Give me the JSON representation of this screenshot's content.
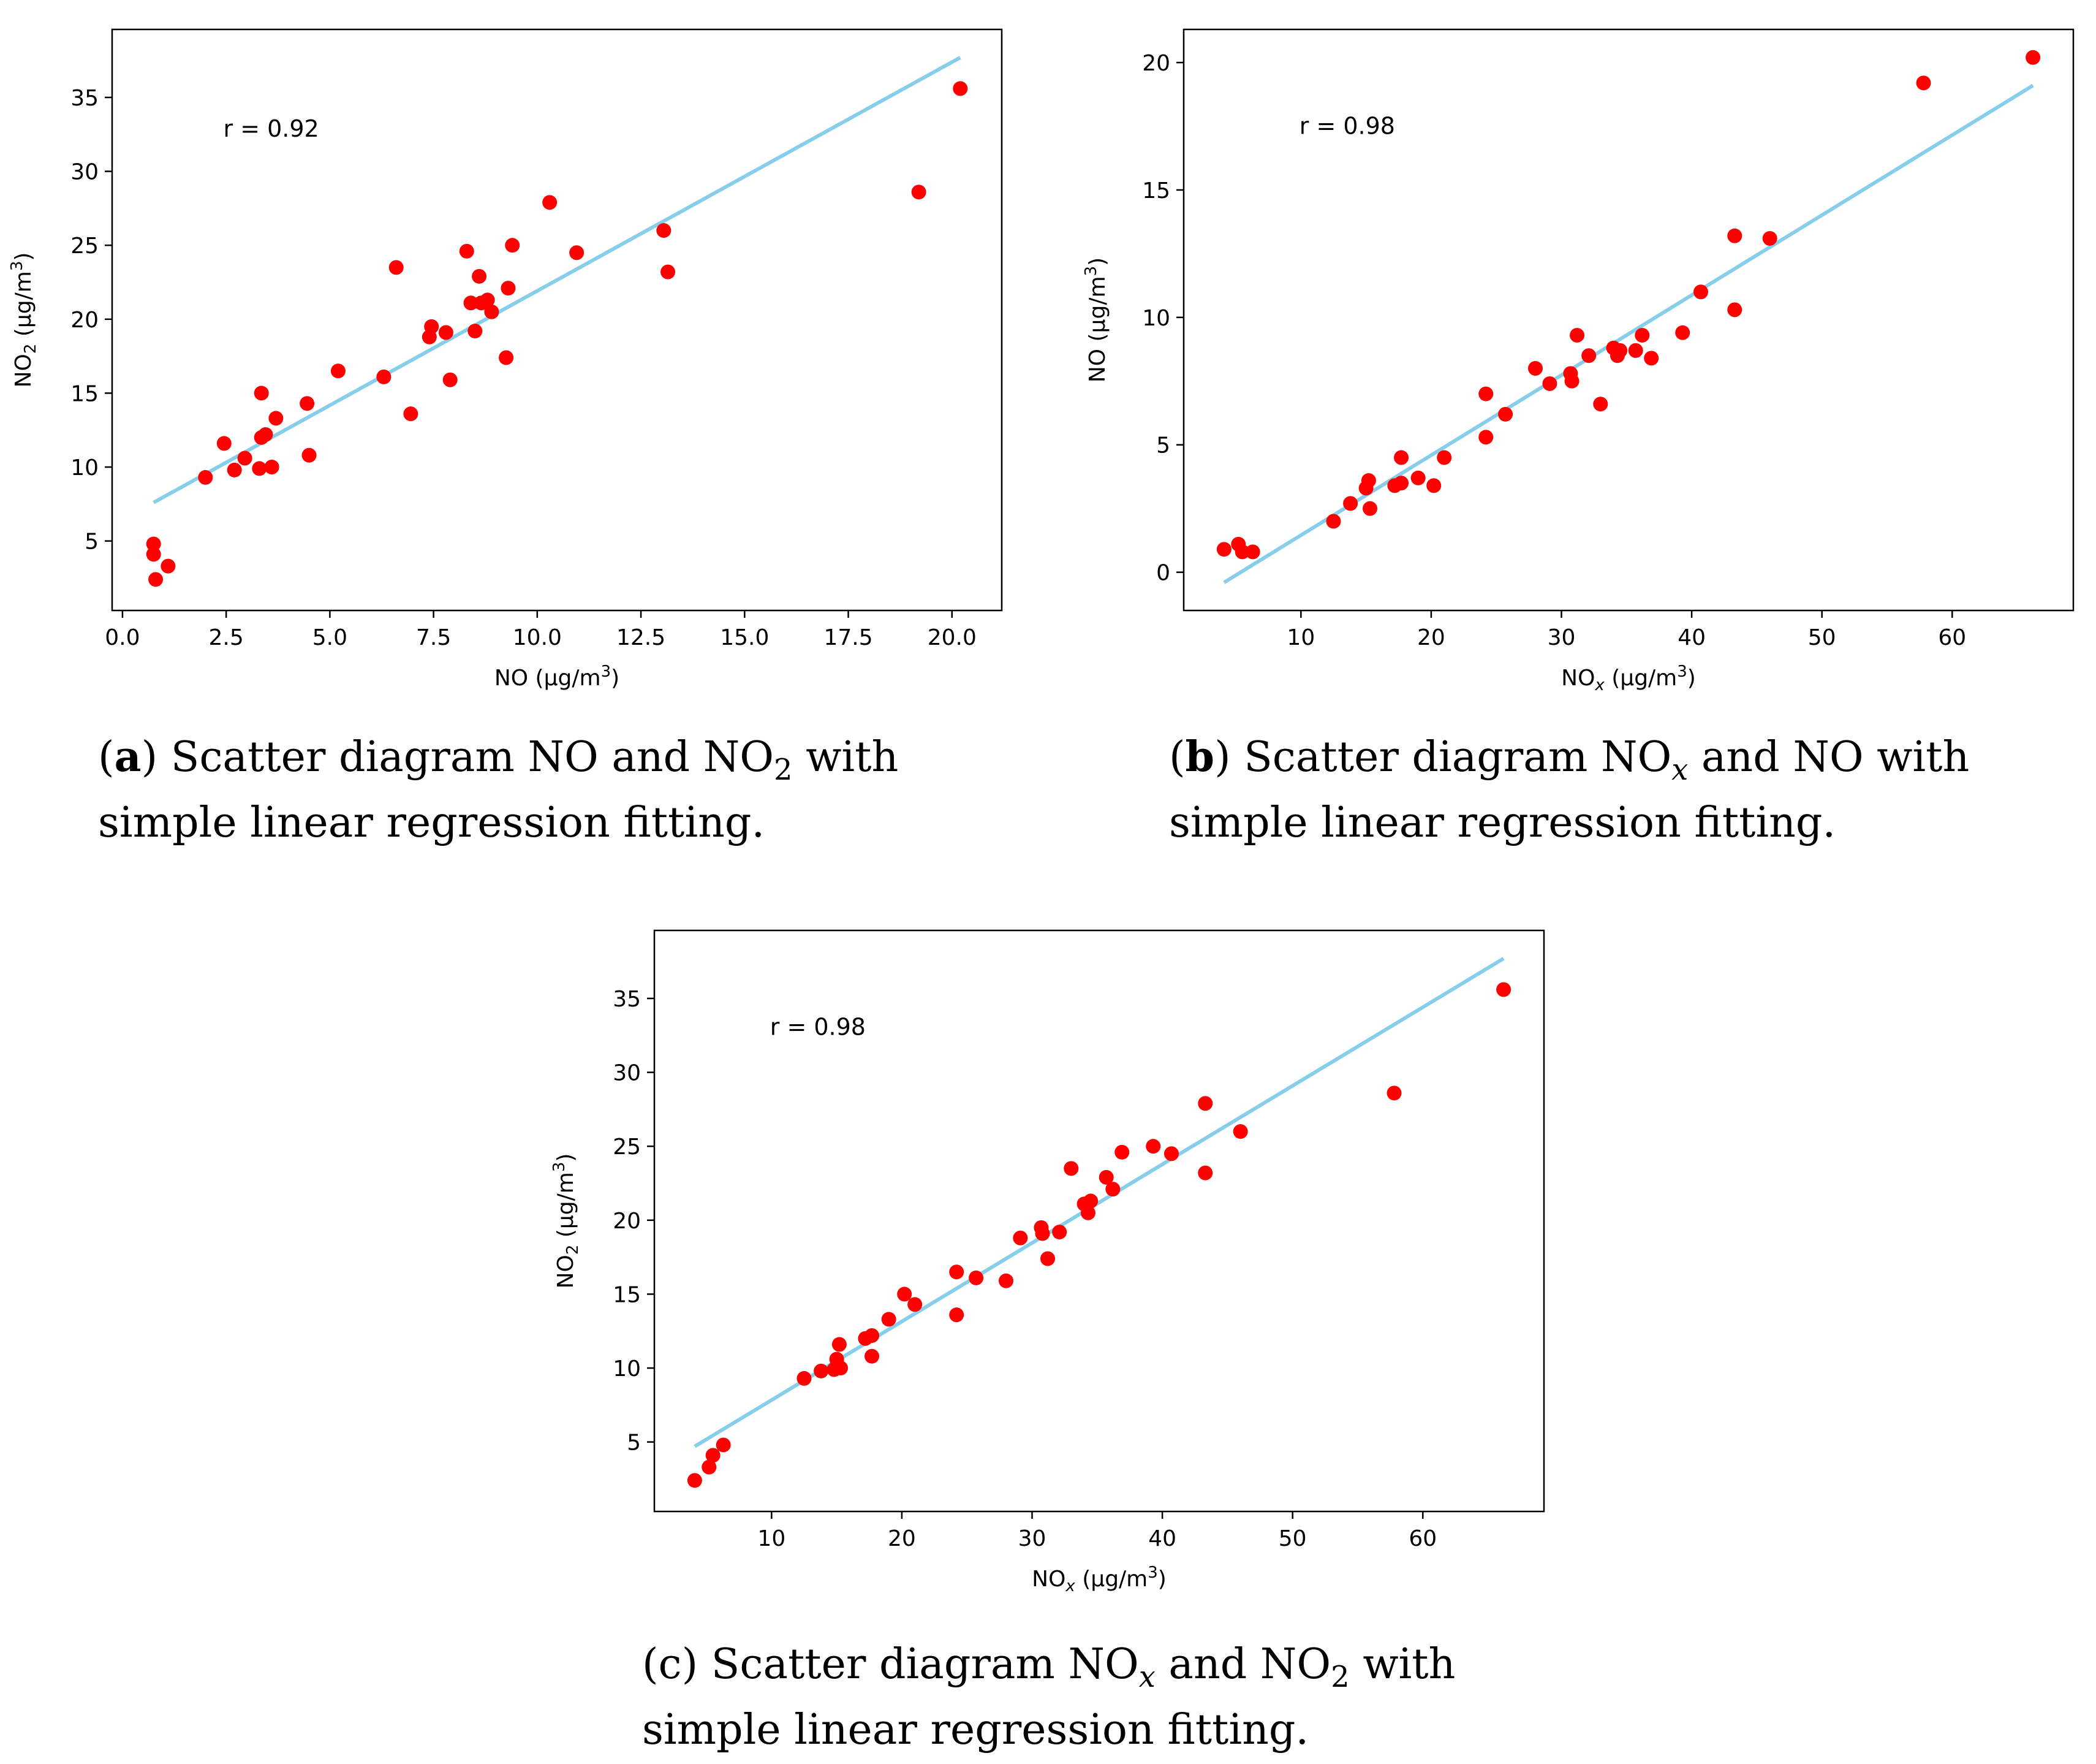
{
  "colors": {
    "points": "#ff0000",
    "line": "#87ceeb",
    "frame": "#000000"
  },
  "chart_data": [
    {
      "id": "a",
      "type": "scatter",
      "annotation": "r = 0.92",
      "xlabel_main": "NO (µg/m",
      "xlabel_sup": "3",
      "xlabel_tail": ")",
      "ylabel_main": "NO",
      "ylabel_sub": "2",
      "ylabel_mid": " (µg/m",
      "ylabel_sup": "3",
      "ylabel_tail": ")",
      "xlim": [
        -0.25,
        21.2
      ],
      "ylim": [
        0.3,
        39.6
      ],
      "xticks": [
        0,
        2.5,
        5,
        7.5,
        10,
        12.5,
        15,
        17.5,
        20
      ],
      "xtick_labels": [
        "0.0",
        "2.5",
        "5.0",
        "7.5",
        "10.0",
        "12.5",
        "15.0",
        "17.5",
        "20.0"
      ],
      "yticks": [
        5,
        10,
        15,
        20,
        25,
        30,
        35
      ],
      "ytick_labels": [
        "5",
        "10",
        "15",
        "20",
        "25",
        "30",
        "35"
      ],
      "fit": {
        "x": [
          0.75,
          20.2
        ],
        "y": [
          7.6,
          37.7
        ]
      },
      "points": [
        [
          0.75,
          4.8
        ],
        [
          0.75,
          4.1
        ],
        [
          0.8,
          2.4
        ],
        [
          1.1,
          3.3
        ],
        [
          2.0,
          9.3
        ],
        [
          2.45,
          11.6
        ],
        [
          2.7,
          9.8
        ],
        [
          2.95,
          10.6
        ],
        [
          3.3,
          9.9
        ],
        [
          3.35,
          15.0
        ],
        [
          3.35,
          12.0
        ],
        [
          3.45,
          12.2
        ],
        [
          3.6,
          10.0
        ],
        [
          3.7,
          13.3
        ],
        [
          4.45,
          14.3
        ],
        [
          4.5,
          10.8
        ],
        [
          5.2,
          16.5
        ],
        [
          6.3,
          16.1
        ],
        [
          6.6,
          23.5
        ],
        [
          6.95,
          13.6
        ],
        [
          7.4,
          18.8
        ],
        [
          7.45,
          19.5
        ],
        [
          7.8,
          19.1
        ],
        [
          7.9,
          15.9
        ],
        [
          8.3,
          24.6
        ],
        [
          8.4,
          21.1
        ],
        [
          8.5,
          19.2
        ],
        [
          8.6,
          22.9
        ],
        [
          8.65,
          21.1
        ],
        [
          8.8,
          21.3
        ],
        [
          8.9,
          20.5
        ],
        [
          9.25,
          17.4
        ],
        [
          9.3,
          22.1
        ],
        [
          9.4,
          25.0
        ],
        [
          10.3,
          27.9
        ],
        [
          10.95,
          24.5
        ],
        [
          13.05,
          26.0
        ],
        [
          13.15,
          23.2
        ],
        [
          19.2,
          28.6
        ],
        [
          20.2,
          35.6
        ]
      ]
    },
    {
      "id": "b",
      "type": "scatter",
      "annotation": "r = 0.98",
      "xlabel_main": "NO",
      "xlabel_sub": "x",
      "xlabel_mid": " (µg/m",
      "xlabel_sup": "3",
      "xlabel_tail": ")",
      "ylabel_main": "NO (µg/m",
      "ylabel_sup": "3",
      "ylabel_tail": ")",
      "xlim": [
        1.0,
        69.3
      ],
      "ylim": [
        -1.5,
        21.3
      ],
      "xticks": [
        10,
        20,
        30,
        40,
        50,
        60
      ],
      "xtick_labels": [
        "10",
        "20",
        "30",
        "40",
        "50",
        "60"
      ],
      "yticks": [
        0,
        5,
        10,
        15,
        20
      ],
      "ytick_labels": [
        "0",
        "5",
        "10",
        "15",
        "20"
      ],
      "fit": {
        "x": [
          4.1,
          66.2
        ],
        "y": [
          -0.4,
          19.1
        ]
      },
      "points": [
        [
          4.1,
          0.9
        ],
        [
          5.2,
          1.1
        ],
        [
          5.5,
          0.8
        ],
        [
          6.3,
          0.8
        ],
        [
          12.5,
          2.0
        ],
        [
          13.8,
          2.7
        ],
        [
          15.0,
          3.3
        ],
        [
          15.2,
          3.6
        ],
        [
          15.3,
          2.5
        ],
        [
          17.2,
          3.4
        ],
        [
          17.7,
          3.5
        ],
        [
          17.7,
          4.5
        ],
        [
          19.0,
          3.7
        ],
        [
          20.2,
          3.4
        ],
        [
          21.0,
          4.5
        ],
        [
          24.2,
          7.0
        ],
        [
          24.2,
          5.3
        ],
        [
          25.7,
          6.2
        ],
        [
          28.0,
          8.0
        ],
        [
          29.1,
          7.4
        ],
        [
          30.7,
          7.8
        ],
        [
          30.8,
          7.5
        ],
        [
          31.2,
          9.3
        ],
        [
          32.1,
          8.5
        ],
        [
          33.0,
          6.6
        ],
        [
          34.0,
          8.8
        ],
        [
          34.3,
          8.5
        ],
        [
          34.5,
          8.7
        ],
        [
          35.7,
          8.7
        ],
        [
          36.2,
          9.3
        ],
        [
          36.9,
          8.4
        ],
        [
          39.3,
          9.4
        ],
        [
          40.7,
          11.0
        ],
        [
          43.3,
          13.2
        ],
        [
          43.3,
          10.3
        ],
        [
          46.0,
          13.1
        ],
        [
          57.8,
          19.2
        ],
        [
          66.2,
          20.2
        ]
      ]
    },
    {
      "id": "c",
      "type": "scatter",
      "annotation": "r = 0.98",
      "xlabel_main": "NO",
      "xlabel_sub": "x",
      "xlabel_mid": " (µg/m",
      "xlabel_sup": "3",
      "xlabel_tail": ")",
      "ylabel_main": "NO",
      "ylabel_sub": "2",
      "ylabel_mid": " (µg/m",
      "ylabel_sup": "3",
      "ylabel_tail": ")",
      "xlim": [
        1.0,
        69.3
      ],
      "ylim": [
        0.3,
        39.6
      ],
      "xticks": [
        10,
        20,
        30,
        40,
        50,
        60
      ],
      "xtick_labels": [
        "10",
        "20",
        "30",
        "40",
        "50",
        "60"
      ],
      "yticks": [
        5,
        10,
        15,
        20,
        25,
        30,
        35
      ],
      "ytick_labels": [
        "5",
        "10",
        "15",
        "20",
        "25",
        "30",
        "35"
      ],
      "fit": {
        "x": [
          4.1,
          66.2
        ],
        "y": [
          4.7,
          37.7
        ]
      },
      "points": [
        [
          4.1,
          2.4
        ],
        [
          5.2,
          3.3
        ],
        [
          5.5,
          4.1
        ],
        [
          6.3,
          4.8
        ],
        [
          12.5,
          9.3
        ],
        [
          13.8,
          9.8
        ],
        [
          14.8,
          9.9
        ],
        [
          15.0,
          10.6
        ],
        [
          15.2,
          11.6
        ],
        [
          15.3,
          10.0
        ],
        [
          17.2,
          12.0
        ],
        [
          17.7,
          12.2
        ],
        [
          17.7,
          10.8
        ],
        [
          19.0,
          13.3
        ],
        [
          20.2,
          15.0
        ],
        [
          21.0,
          14.3
        ],
        [
          24.2,
          16.5
        ],
        [
          24.2,
          13.6
        ],
        [
          25.7,
          16.1
        ],
        [
          28.0,
          15.9
        ],
        [
          29.1,
          18.8
        ],
        [
          30.7,
          19.5
        ],
        [
          30.8,
          19.1
        ],
        [
          31.2,
          17.4
        ],
        [
          32.1,
          19.2
        ],
        [
          33.0,
          23.5
        ],
        [
          34.0,
          21.1
        ],
        [
          34.3,
          20.5
        ],
        [
          34.5,
          21.3
        ],
        [
          35.7,
          22.9
        ],
        [
          36.2,
          22.1
        ],
        [
          36.9,
          24.6
        ],
        [
          39.3,
          25.0
        ],
        [
          40.7,
          24.5
        ],
        [
          43.3,
          27.9
        ],
        [
          43.3,
          23.2
        ],
        [
          46.0,
          26.0
        ],
        [
          57.8,
          28.6
        ],
        [
          66.2,
          35.6
        ]
      ]
    }
  ],
  "captions": {
    "a": {
      "label": "a",
      "l1": " Scatter diagram NO and NO",
      "l1_sub": "2",
      "l1_tail": " with",
      "l2": "simple linear regression fitting."
    },
    "b": {
      "label": "b",
      "l1": " Scatter diagram NO",
      "l1_sub": "x",
      "l1_tail": " and NO with",
      "l2": "simple linear regression fitting."
    },
    "c": {
      "label": "c",
      "l1": " Scatter diagram NO",
      "l1_sub": "x",
      "l1_tail": " and NO",
      "l1_sub2": "2",
      "l1_tail2": " with",
      "l2": "simple linear regression fitting."
    }
  }
}
